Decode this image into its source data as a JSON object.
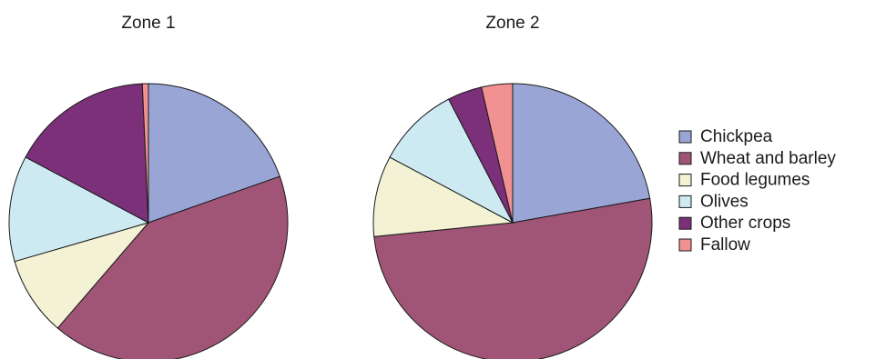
{
  "chart_data": {
    "type": "pie",
    "categories": [
      "Chickpea",
      "Wheat and barley",
      "Food legumes",
      "Olives",
      "Other crops",
      "Fallow"
    ],
    "colors": [
      "#99a5d4",
      "#a05577",
      "#f3f2d4",
      "#cdeaf3",
      "#7b3079",
      "#f29191"
    ],
    "legend": "right",
    "pies": [
      {
        "title": "Zone 1",
        "values": [
          19.6,
          41.7,
          9.2,
          12.3,
          16.5,
          0.7
        ]
      },
      {
        "title": "Zone 2",
        "values": [
          22.2,
          51.2,
          9.4,
          9.6,
          4.0,
          3.6
        ]
      }
    ]
  }
}
